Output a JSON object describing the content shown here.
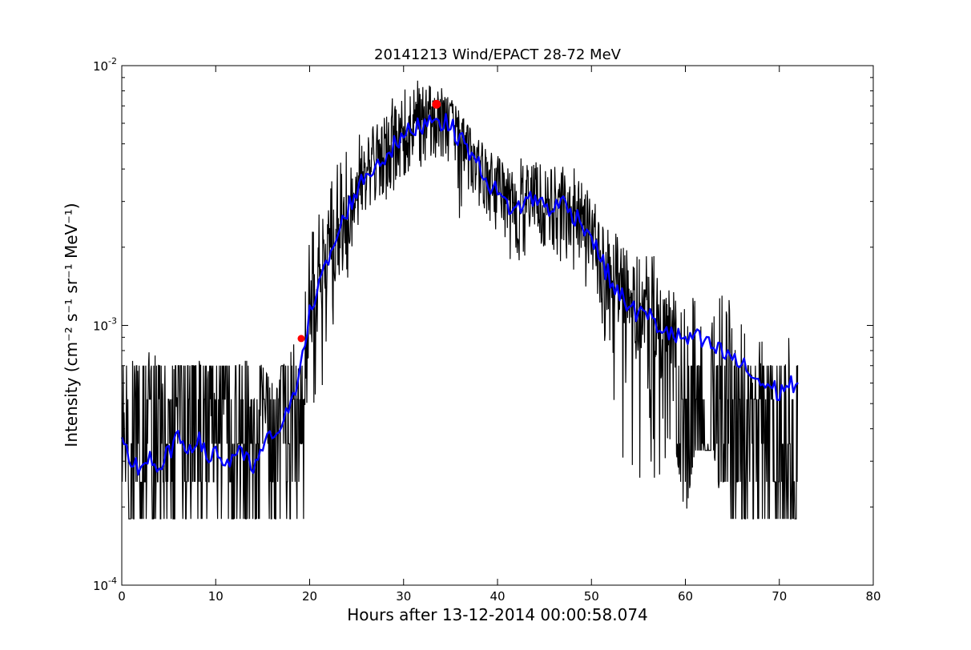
{
  "chart_data": {
    "type": "line",
    "title": "20141213 Wind/EPACT 28-72 MeV",
    "xlabel": "Hours after 13-12-2014 00:00:58.074",
    "ylabel": "Intensity (cm⁻² s⁻¹ sr⁻¹ MeV⁻¹)",
    "xlim": [
      0,
      80
    ],
    "ylim": [
      0.0001,
      0.01
    ],
    "yscale": "log",
    "grid": false,
    "x_ticks": [
      0,
      10,
      20,
      30,
      40,
      50,
      60,
      70,
      80
    ],
    "x_tick_labels": [
      "0",
      "10",
      "20",
      "30",
      "40",
      "50",
      "60",
      "70",
      "80"
    ],
    "y_ticks": [
      0.0001,
      0.001,
      0.01
    ],
    "y_tick_labels": [
      {
        "base": "10",
        "exp": "-4"
      },
      {
        "base": "10",
        "exp": "-3"
      },
      {
        "base": "10",
        "exp": "-2"
      }
    ],
    "colors": {
      "raw": "#000000",
      "smoothed": "#0000ff",
      "markers": "#ff0000"
    },
    "series": [
      {
        "style": "raw",
        "sampling": "approximately one point every 3 minutes from 0 to 72 hours; noisy envelope around the smoothed profile",
        "x": [
          0,
          2,
          4,
          6,
          8,
          10,
          12,
          14,
          16,
          17,
          18,
          19,
          19.5,
          20,
          21,
          22,
          23,
          24,
          25,
          26,
          27,
          28,
          29,
          30,
          31,
          32,
          33,
          33.5,
          34,
          35,
          36,
          37,
          38,
          39,
          40,
          41,
          42,
          43,
          44,
          45,
          46,
          47,
          48,
          49,
          50,
          51,
          52,
          53,
          54,
          55,
          56,
          57,
          58,
          59,
          60,
          61,
          62,
          63,
          64,
          65,
          66,
          67,
          68,
          69,
          70,
          71,
          72
        ],
        "y_low": [
          0.00018,
          0.00018,
          0.00018,
          0.00018,
          0.00018,
          0.00018,
          0.00018,
          0.00018,
          0.00018,
          0.00018,
          0.00018,
          0.00018,
          0.00018,
          0.00033,
          0.00047,
          0.00075,
          0.0011,
          0.0015,
          0.0019,
          0.0022,
          0.0025,
          0.0028,
          0.0032,
          0.0035,
          0.0038,
          0.004,
          0.004,
          0.0042,
          0.0035,
          0.003,
          0.0025,
          0.0022,
          0.002,
          0.0019,
          0.0016,
          0.0018,
          0.0018,
          0.0017,
          0.0019,
          0.002,
          0.0018,
          0.0017,
          0.0016,
          0.0014,
          0.0012,
          0.001,
          0.00052,
          0.00018,
          0.00033,
          0.00018,
          0.00033,
          0.00018,
          0.00033,
          0.00033,
          0.00018,
          0.00033,
          0.00033,
          0.00033,
          0.00018,
          0.00018,
          0.00018,
          0.00018,
          0.00018,
          0.00018,
          0.00018,
          0.00018,
          0.00018
        ],
        "y_high": [
          0.0007,
          0.0008,
          0.0009,
          0.0007,
          0.0008,
          0.0007,
          0.0007,
          0.0008,
          0.0006,
          0.0007,
          0.0009,
          0.0012,
          0.0016,
          0.0022,
          0.0028,
          0.0034,
          0.0042,
          0.0048,
          0.0055,
          0.006,
          0.0066,
          0.0072,
          0.0078,
          0.0082,
          0.0086,
          0.009,
          0.0092,
          0.0088,
          0.0085,
          0.0075,
          0.0066,
          0.0058,
          0.0052,
          0.0048,
          0.0046,
          0.0046,
          0.0044,
          0.0045,
          0.0046,
          0.0046,
          0.0044,
          0.0046,
          0.0042,
          0.0038,
          0.0032,
          0.0028,
          0.0024,
          0.0022,
          0.0022,
          0.0019,
          0.0021,
          0.0018,
          0.0018,
          0.0017,
          0.0016,
          0.0015,
          0.0014,
          0.0013,
          0.0014,
          0.0012,
          0.0011,
          0.001,
          0.0009,
          0.0009,
          0.0009,
          0.0011,
          0.0007
        ]
      },
      {
        "style": "smoothed",
        "x": [
          0,
          1,
          2,
          3,
          4,
          5,
          6,
          7,
          8,
          9,
          10,
          11,
          12,
          13,
          14,
          15,
          16,
          17,
          18,
          18.5,
          19,
          19.5,
          20,
          21,
          22,
          23,
          24,
          25,
          26,
          27,
          28,
          29,
          30,
          31,
          32,
          33,
          33.5,
          34,
          35,
          36,
          37,
          38,
          39,
          40,
          41,
          42,
          43,
          44,
          45,
          46,
          47,
          48,
          49,
          50,
          51,
          52,
          53,
          54,
          55,
          56,
          57,
          58,
          59,
          60,
          61,
          62,
          63,
          64,
          65,
          66,
          67,
          68,
          69,
          70,
          71,
          72
        ],
        "y": [
          0.00035,
          0.0003,
          0.00028,
          0.00032,
          0.00026,
          0.00033,
          0.00036,
          0.00034,
          0.00037,
          0.00031,
          0.00033,
          0.00029,
          0.00032,
          0.00031,
          0.00028,
          0.00033,
          0.00038,
          0.00041,
          0.00048,
          0.00058,
          0.00075,
          0.0009,
          0.0011,
          0.0014,
          0.0018,
          0.0022,
          0.0028,
          0.0033,
          0.0038,
          0.0041,
          0.0045,
          0.0049,
          0.0053,
          0.0057,
          0.006,
          0.0063,
          0.0065,
          0.0061,
          0.0058,
          0.0053,
          0.0047,
          0.0041,
          0.0036,
          0.0032,
          0.0029,
          0.0028,
          0.003,
          0.0031,
          0.0029,
          0.0028,
          0.003,
          0.0027,
          0.0025,
          0.0022,
          0.0018,
          0.0015,
          0.0013,
          0.0012,
          0.0011,
          0.0011,
          0.001,
          0.00095,
          0.0009,
          0.00088,
          0.0009,
          0.00085,
          0.00082,
          0.00078,
          0.00075,
          0.0007,
          0.00065,
          0.0006,
          0.00058,
          0.00055,
          0.0006,
          0.00058
        ]
      }
    ],
    "markers": [
      {
        "x": 19.1,
        "y": 0.00089
      },
      {
        "x": 33.5,
        "y": 0.0071
      }
    ]
  }
}
